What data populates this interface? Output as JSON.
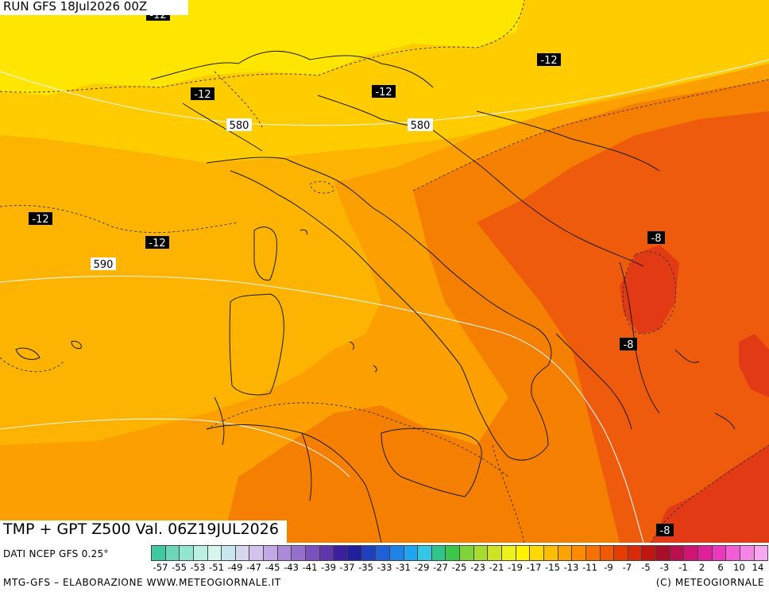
{
  "header": {
    "run_label": "RUN GFS 18Jul2026 00Z"
  },
  "title": {
    "label": "TMP + GPT Z500 Val. 06Z19JUL2026"
  },
  "map": {
    "isotherm_labels": [
      "-12",
      "-12",
      "-12",
      "-12",
      "-12",
      "-12",
      "-8",
      "-8",
      "-8"
    ],
    "isohypse_labels": [
      "580",
      "580",
      "590"
    ],
    "colors": {
      "yellow": "#ffe600",
      "yellow_orange": "#ffcc00",
      "orange_light": "#fdb400",
      "orange": "#fba000",
      "orange_dark": "#f57f00",
      "red_orange": "#ef5b0c",
      "red": "#e23a14"
    }
  },
  "legend": {
    "source": "DATI NCEP GFS 0.25°",
    "ticks": [
      "-57",
      "-55",
      "-53",
      "-51",
      "-49",
      "-47",
      "-45",
      "-43",
      "-41",
      "-39",
      "-37",
      "-35",
      "-33",
      "-31",
      "-29",
      "-27",
      "-25",
      "-23",
      "-21",
      "-19",
      "-17",
      "-15",
      "-13",
      "-11",
      "-9",
      "-7",
      "-5",
      "-3",
      "-1",
      "2",
      "6",
      "10",
      "14"
    ],
    "swatches": [
      "#3fc9a0",
      "#6ad8b8",
      "#92e5cf",
      "#b9f0e2",
      "#d6f5ee",
      "#c8e6ee",
      "#d7d7f0",
      "#d2c2ec",
      "#c2a8e4",
      "#aa8ad8",
      "#9670cc",
      "#7a52be",
      "#5f36ad",
      "#3c1f9e",
      "#1f1fa0",
      "#1f3fbf",
      "#1f5fd9",
      "#1f82e6",
      "#22a5f0",
      "#35c6e5",
      "#31c48d",
      "#3bc84a",
      "#7fd43a",
      "#a7dc2f",
      "#cde324",
      "#eef21a",
      "#fff200",
      "#ffd800",
      "#ffbd00",
      "#ffa200",
      "#ff8a00",
      "#f77000",
      "#ef5a00",
      "#e53d00",
      "#d82a0a",
      "#c21512",
      "#a80e28",
      "#b8104e",
      "#cf1474",
      "#e0209a",
      "#ec38bd",
      "#f25cd6",
      "#f684e6",
      "#f8a8ee"
    ]
  },
  "footer": {
    "left": "MTG-GFS – ELABORAZIONE WWW.METEOGIORNALE.IT",
    "right": "(C) METEOGIORNALE"
  }
}
